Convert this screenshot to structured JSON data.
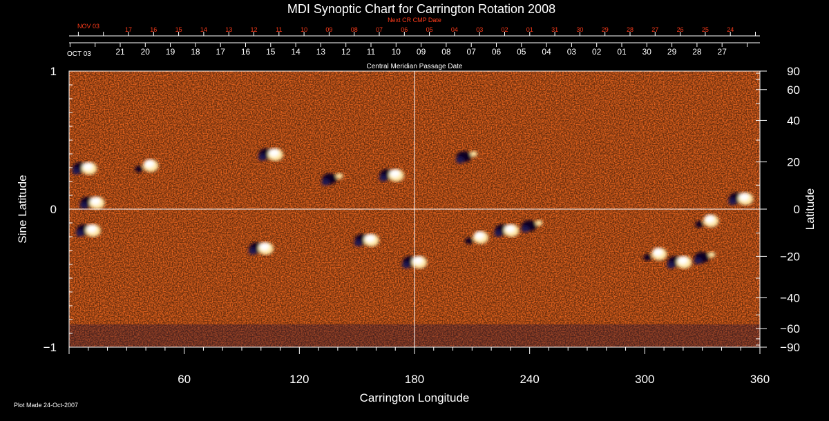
{
  "chart_data": {
    "type": "heatmap",
    "title": "MDI Synoptic Chart for Carrington Rotation 2008",
    "xlabel": "Carrington Longitude",
    "ylabel_left": "Sine Latitude",
    "ylabel_right": "Latitude",
    "xlim": [
      0,
      360
    ],
    "ylim_sine": [
      -1,
      1
    ],
    "x_ticks": [
      60,
      120,
      180,
      240,
      300,
      360
    ],
    "y_ticks_sine": [
      {
        "value": 1,
        "label": "1"
      },
      {
        "value": 0,
        "label": "0"
      },
      {
        "value": -1,
        "label": "−1"
      }
    ],
    "y_ticks_latitude": [
      {
        "deg": 90,
        "label": "90"
      },
      {
        "deg": 60,
        "label": "60"
      },
      {
        "deg": 40,
        "label": "40"
      },
      {
        "deg": 20,
        "label": "20"
      },
      {
        "deg": 0,
        "label": "0"
      },
      {
        "deg": -20,
        "label": "−20"
      },
      {
        "deg": -40,
        "label": "−40"
      },
      {
        "deg": -60,
        "label": "−60"
      },
      {
        "deg": -90,
        "label": "−90"
      }
    ],
    "reference_lines": {
      "longitude": 180,
      "sine_latitude": 0
    },
    "cmp_axis": {
      "label": "Central Meridian Passage Date",
      "start_label": "OCT 03",
      "days": [
        "21",
        "20",
        "19",
        "18",
        "17",
        "16",
        "15",
        "14",
        "13",
        "12",
        "11",
        "10",
        "09",
        "08",
        "07",
        "06",
        "05",
        "04",
        "03",
        "02",
        "01",
        "30",
        "29",
        "28",
        "27"
      ]
    },
    "next_cmp_axis": {
      "label": "Next CR CMP Date",
      "start_label": "NOV 03",
      "days": [
        "17",
        "16",
        "15",
        "14",
        "13",
        "12",
        "11",
        "10",
        "09",
        "08",
        "07",
        "06",
        "05",
        "04",
        "03",
        "02",
        "01",
        "31",
        "30",
        "29",
        "28",
        "27",
        "26",
        "25",
        "24"
      ]
    },
    "field_palette": [
      "#0a0620",
      "#1a1250",
      "#2e1d6e",
      "#7a1408",
      "#b32a08",
      "#e04a10",
      "#f46a18",
      "#ff8f2a",
      "#ffc45a",
      "#ffe9a8",
      "#ffffff"
    ],
    "active_regions": [
      {
        "lon": 8,
        "sinlat": 0.3,
        "polarity": "mixed"
      },
      {
        "lon": 12,
        "sinlat": 0.05,
        "polarity": "mixed"
      },
      {
        "lon": 10,
        "sinlat": -0.15,
        "polarity": "mixed"
      },
      {
        "lon": 40,
        "sinlat": 0.32,
        "polarity": "positive"
      },
      {
        "lon": 105,
        "sinlat": 0.4,
        "polarity": "mixed"
      },
      {
        "lon": 138,
        "sinlat": 0.22,
        "polarity": "negative"
      },
      {
        "lon": 168,
        "sinlat": 0.25,
        "polarity": "mixed"
      },
      {
        "lon": 155,
        "sinlat": -0.22,
        "polarity": "mixed"
      },
      {
        "lon": 100,
        "sinlat": -0.28,
        "polarity": "mixed"
      },
      {
        "lon": 180,
        "sinlat": -0.38,
        "polarity": "mixed"
      },
      {
        "lon": 212,
        "sinlat": -0.2,
        "polarity": "positive"
      },
      {
        "lon": 228,
        "sinlat": -0.15,
        "polarity": "mixed"
      },
      {
        "lon": 242,
        "sinlat": -0.12,
        "polarity": "negative"
      },
      {
        "lon": 305,
        "sinlat": -0.32,
        "polarity": "positive"
      },
      {
        "lon": 318,
        "sinlat": -0.38,
        "polarity": "mixed"
      },
      {
        "lon": 332,
        "sinlat": -0.35,
        "polarity": "negative"
      },
      {
        "lon": 332,
        "sinlat": -0.08,
        "polarity": "positive"
      },
      {
        "lon": 350,
        "sinlat": 0.08,
        "polarity": "mixed"
      },
      {
        "lon": 208,
        "sinlat": 0.38,
        "polarity": "negative"
      }
    ]
  },
  "footer": {
    "plot_made": "Plot Made 24-Oct-2007"
  }
}
